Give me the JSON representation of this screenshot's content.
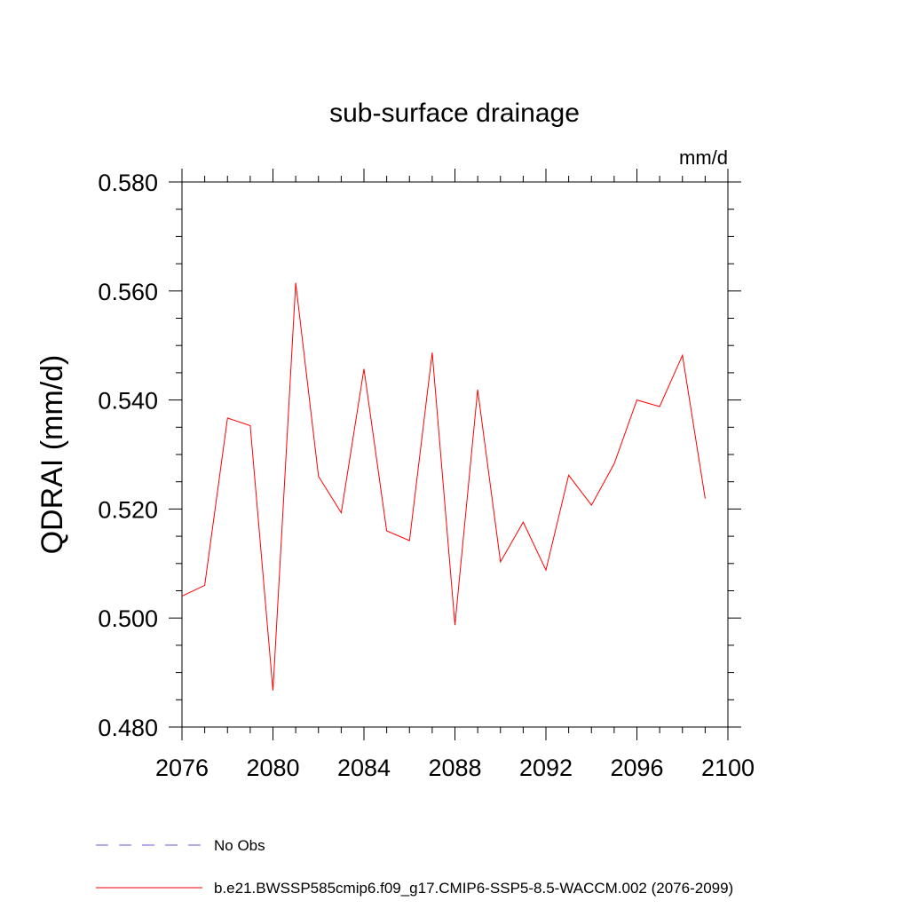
{
  "chart_data": {
    "type": "line",
    "title": "sub-surface drainage",
    "units_label": "mm/d",
    "ylabel": "QDRAI  (mm/d)",
    "xlabel": "",
    "xlim": [
      2076,
      2100
    ],
    "ylim": [
      0.48,
      0.58
    ],
    "x_ticks": [
      2076,
      2080,
      2084,
      2088,
      2092,
      2096,
      2100
    ],
    "x_tick_labels": [
      "2076",
      "2080",
      "2084",
      "2088",
      "2092",
      "2096",
      "2100"
    ],
    "y_ticks": [
      0.48,
      0.5,
      0.52,
      0.54,
      0.56,
      0.58
    ],
    "y_tick_labels": [
      "0.480",
      "0.500",
      "0.520",
      "0.540",
      "0.560",
      "0.580"
    ],
    "grid": false,
    "series": [
      {
        "name": "b.e21.BWSSP585cmip6.f09_g17.CMIP6-SSP5-8.5-WACCM.002 (2076-2099)",
        "color": "#ff0000",
        "x": [
          2076,
          2077,
          2078,
          2079,
          2080,
          2081,
          2082,
          2083,
          2084,
          2085,
          2086,
          2087,
          2088,
          2089,
          2090,
          2091,
          2092,
          2093,
          2094,
          2095,
          2096,
          2097,
          2098,
          2099
        ],
        "y": [
          0.504,
          0.506,
          0.5367,
          0.5353,
          0.4867,
          0.5615,
          0.526,
          0.5193,
          0.5457,
          0.516,
          0.5142,
          0.5487,
          0.4987,
          0.5419,
          0.5103,
          0.5176,
          0.5088,
          0.5262,
          0.5207,
          0.5283,
          0.54,
          0.5388,
          0.5482,
          0.5219
        ]
      }
    ],
    "legend": {
      "placement": "bottom",
      "entries": [
        {
          "label": "No Obs",
          "color": "#6b5bd6",
          "style": "dashed"
        },
        {
          "label": "b.e21.BWSSP585cmip6.f09_g17.CMIP6-SSP5-8.5-WACCM.002 (2076-2099)",
          "color": "#ff0000",
          "style": "solid"
        }
      ]
    }
  }
}
